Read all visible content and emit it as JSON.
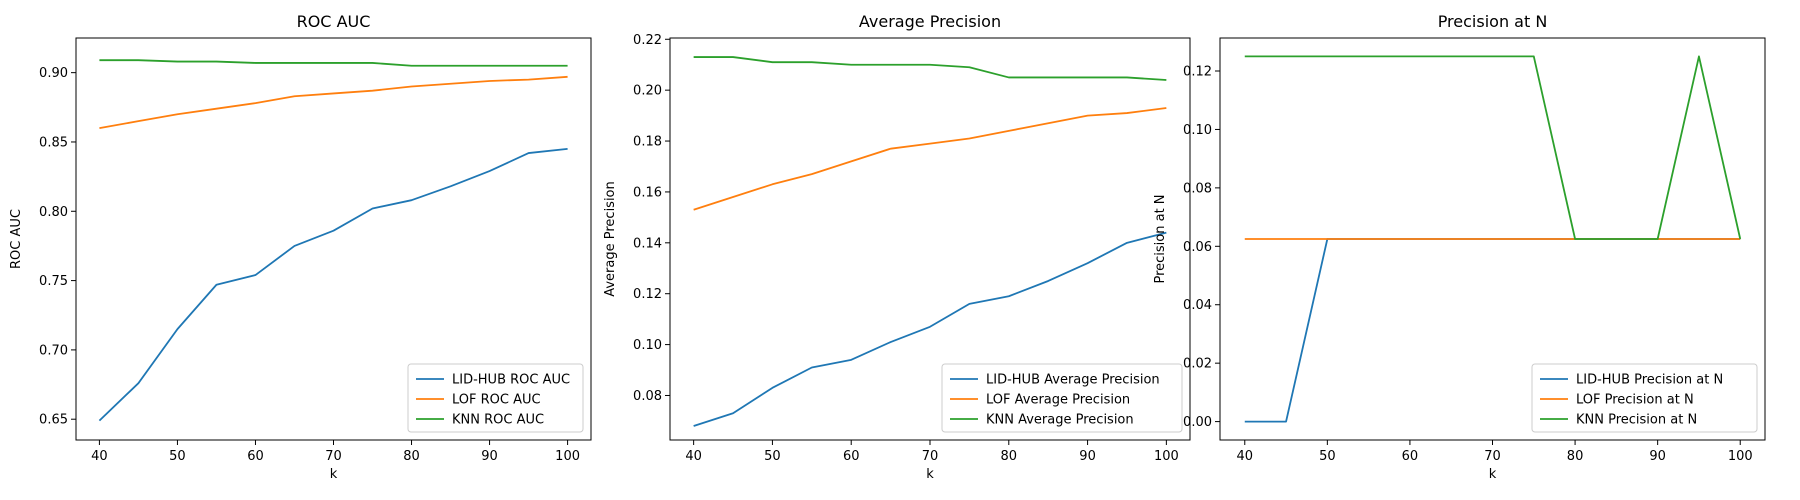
{
  "chart_data": [
    {
      "type": "line",
      "title": "ROC AUC",
      "xlabel": "k",
      "ylabel": "ROC AUC",
      "xlim": [
        37,
        103
      ],
      "ylim": [
        0.635,
        0.925
      ],
      "xticks": [
        40,
        50,
        60,
        70,
        80,
        90,
        100
      ],
      "yticks": [
        0.65,
        0.7,
        0.75,
        0.8,
        0.85,
        0.9
      ],
      "ytick_decimals": 2,
      "grid": false,
      "legend": "lower-right",
      "x": [
        40,
        45,
        50,
        55,
        60,
        65,
        70,
        75,
        80,
        85,
        90,
        95,
        100
      ],
      "series": [
        {
          "name": "LID-HUB ROC AUC",
          "color": "#1f77b4",
          "values": [
            0.649,
            0.676,
            0.715,
            0.747,
            0.754,
            0.775,
            0.786,
            0.802,
            0.808,
            0.818,
            0.829,
            0.842,
            0.845
          ]
        },
        {
          "name": "LOF ROC AUC",
          "color": "#ff7f0e",
          "values": [
            0.86,
            0.865,
            0.87,
            0.874,
            0.878,
            0.883,
            0.885,
            0.887,
            0.89,
            0.892,
            0.894,
            0.895,
            0.897
          ]
        },
        {
          "name": "KNN ROC AUC",
          "color": "#2ca02c",
          "values": [
            0.909,
            0.909,
            0.908,
            0.908,
            0.907,
            0.907,
            0.907,
            0.907,
            0.905,
            0.905,
            0.905,
            0.905,
            0.905
          ]
        }
      ]
    },
    {
      "type": "line",
      "title": "Average Precision",
      "xlabel": "k",
      "ylabel": "Average Precision",
      "xlim": [
        37,
        103
      ],
      "ylim": [
        0.0625,
        0.2205
      ],
      "xticks": [
        40,
        50,
        60,
        70,
        80,
        90,
        100
      ],
      "yticks": [
        0.08,
        0.1,
        0.12,
        0.14,
        0.16,
        0.18,
        0.2,
        0.22
      ],
      "ytick_decimals": 2,
      "grid": false,
      "legend": "lower-right",
      "x": [
        40,
        45,
        50,
        55,
        60,
        65,
        70,
        75,
        80,
        85,
        90,
        95,
        100
      ],
      "series": [
        {
          "name": "LID-HUB Average Precision",
          "color": "#1f77b4",
          "values": [
            0.068,
            0.073,
            0.083,
            0.091,
            0.094,
            0.101,
            0.107,
            0.116,
            0.119,
            0.125,
            0.132,
            0.14,
            0.144
          ]
        },
        {
          "name": "LOF Average Precision",
          "color": "#ff7f0e",
          "values": [
            0.153,
            0.158,
            0.163,
            0.167,
            0.172,
            0.177,
            0.179,
            0.181,
            0.184,
            0.187,
            0.19,
            0.191,
            0.193
          ]
        },
        {
          "name": "KNN Average Precision",
          "color": "#2ca02c",
          "values": [
            0.213,
            0.213,
            0.211,
            0.211,
            0.21,
            0.21,
            0.21,
            0.209,
            0.205,
            0.205,
            0.205,
            0.205,
            0.204
          ]
        }
      ]
    },
    {
      "type": "line",
      "title": "Precision at N",
      "xlabel": "k",
      "ylabel": "Precision at N",
      "xlim": [
        37,
        103
      ],
      "ylim": [
        -0.0063,
        0.1313
      ],
      "xticks": [
        40,
        50,
        60,
        70,
        80,
        90,
        100
      ],
      "yticks": [
        0.0,
        0.02,
        0.04,
        0.06,
        0.08,
        0.1,
        0.12
      ],
      "ytick_decimals": 2,
      "grid": false,
      "legend": "lower-right",
      "x": [
        40,
        45,
        50,
        55,
        60,
        65,
        70,
        75,
        80,
        85,
        90,
        95,
        100
      ],
      "series": [
        {
          "name": "LID-HUB Precision at N",
          "color": "#1f77b4",
          "values": [
            0.0,
            0.0,
            0.0625,
            0.0625,
            0.0625,
            0.0625,
            0.0625,
            0.0625,
            0.0625,
            0.0625,
            0.0625,
            0.0625,
            0.0625
          ]
        },
        {
          "name": "LOF Precision at N",
          "color": "#ff7f0e",
          "values": [
            0.0625,
            0.0625,
            0.0625,
            0.0625,
            0.0625,
            0.0625,
            0.0625,
            0.0625,
            0.0625,
            0.0625,
            0.0625,
            0.0625,
            0.0625
          ]
        },
        {
          "name": "KNN Precision at N",
          "color": "#2ca02c",
          "values": [
            0.125,
            0.125,
            0.125,
            0.125,
            0.125,
            0.125,
            0.125,
            0.125,
            0.0625,
            0.0625,
            0.0625,
            0.125,
            0.0625
          ]
        }
      ]
    }
  ]
}
